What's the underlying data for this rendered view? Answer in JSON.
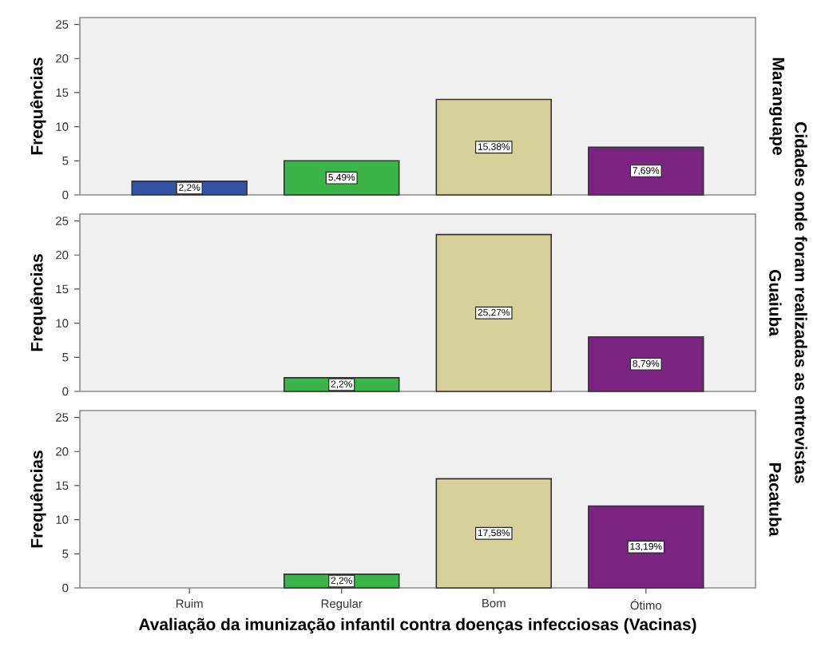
{
  "chart_data": [
    {
      "type": "bar",
      "y2label": "Maranguape",
      "ylabel": "Frequências",
      "categories": [
        "Ruim",
        "Regular",
        "Bom",
        "Ótimo"
      ],
      "values": [
        2,
        5,
        14,
        7
      ],
      "colors": [
        "#3352a4",
        "#3bb44a",
        "#d6d09a",
        "#7b2482"
      ],
      "ylim": [
        0,
        26
      ],
      "yticks": [
        0,
        5,
        10,
        15,
        20,
        25
      ],
      "tick_labels": "y",
      "annotations": [
        {
          "text": "2,2%",
          "x": "Ruim",
          "y": 1
        },
        {
          "text": "5,49%",
          "x": "Regular",
          "y": 2.5
        },
        {
          "text": "15,38%",
          "x": "Bom",
          "y": 7
        },
        {
          "text": "7,69%",
          "x": "Ótimo",
          "y": 3.5
        }
      ]
    },
    {
      "type": "bar",
      "y2label": "Guaiuba",
      "ylabel": "Frequências",
      "categories": [
        "Ruim",
        "Regular",
        "Bom",
        "Ótimo"
      ],
      "values": [
        0,
        2,
        23,
        8
      ],
      "colors": [
        "#3352a4",
        "#3bb44a",
        "#d6d09a",
        "#7b2482"
      ],
      "ylim": [
        0,
        26
      ],
      "yticks": [
        0,
        5,
        10,
        15,
        20,
        25
      ],
      "tick_labels": "y",
      "annotations": [
        "Cidades onde foram realizadas as entrevistas",
        {
          "text": "2,2%",
          "x": "Regular",
          "y": 1
        },
        {
          "text": "25,27%",
          "x": "Bom",
          "y": 11.5
        },
        {
          "text": "8,79%",
          "x": "Ótimo",
          "y": 4
        }
      ]
    },
    {
      "type": "bar",
      "y2label": "Pacatuba",
      "ylabel": "Frequências",
      "xlabel": "Avaliação da imunização infantil contra doenças infecciosas (Vacinas)",
      "categories": [
        "Ruim",
        "Regular",
        "Bom",
        "Ótimo"
      ],
      "values": [
        0,
        2,
        16,
        12
      ],
      "colors": [
        "#3352a4",
        "#3bb44a",
        "#d6d09a",
        "#7b2482"
      ],
      "ylim": [
        0,
        26
      ],
      "yticks": [
        0,
        5,
        10,
        15,
        20,
        25
      ],
      "annotations": [
        {
          "text": "2,2%",
          "x": "Regular",
          "y": 1
        },
        {
          "text": "17,58%",
          "x": "Bom",
          "y": 8
        },
        {
          "text": "13,19%",
          "x": "Ótimo",
          "y": 6
        }
      ]
    }
  ]
}
